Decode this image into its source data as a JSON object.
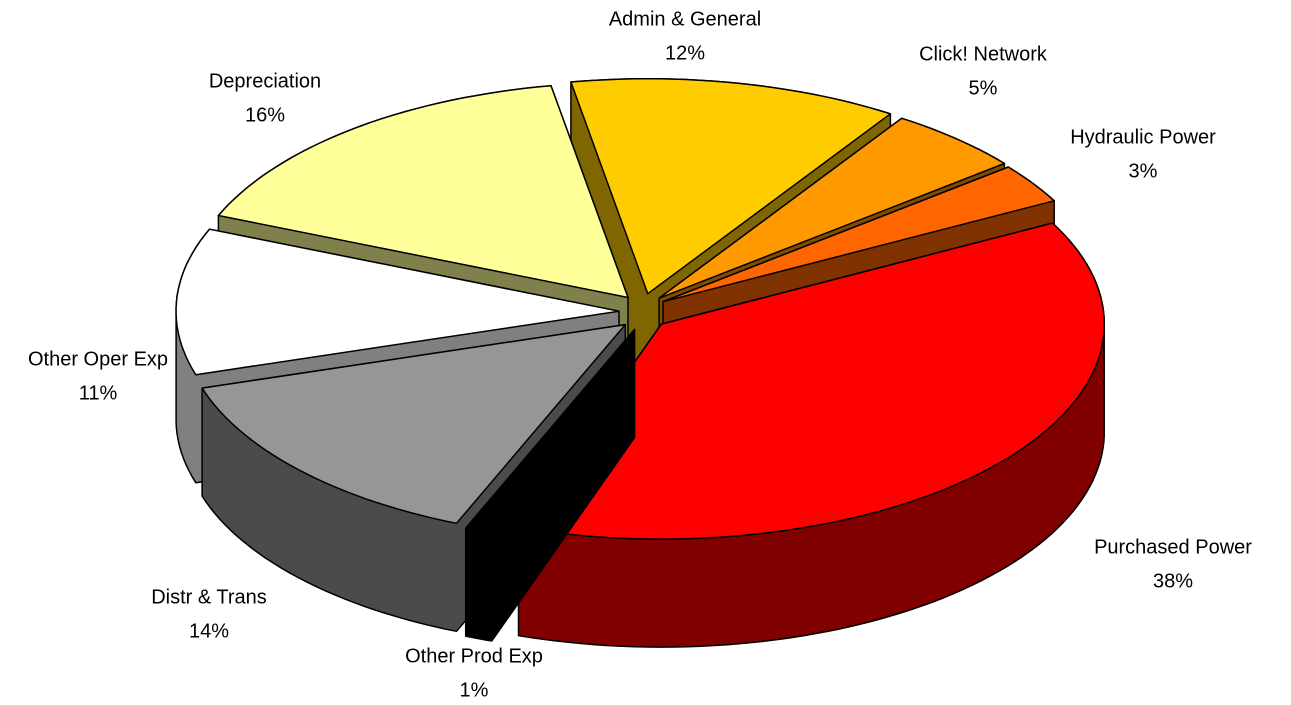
{
  "chart_data": {
    "type": "pie",
    "categories": [
      "Admin & General",
      "Click! Network",
      "Hydraulic Power",
      "Purchased Power",
      "Other Prod Exp",
      "Distr & Trans",
      "Other Oper Exp",
      "Depreciation"
    ],
    "values": [
      12,
      5,
      3,
      38,
      1,
      14,
      11,
      16
    ],
    "value_labels": [
      "12%",
      "5%",
      "3%",
      "38%",
      "1%",
      "14%",
      "11%",
      "16%"
    ],
    "colors": [
      "#ffcc00",
      "#ff9900",
      "#ff6600",
      "#ff0000",
      "#000000",
      "#969696",
      "#ffffff",
      "#ffff99"
    ],
    "side_colors": [
      "#806600",
      "#804c00",
      "#803300",
      "#800000",
      "#000000",
      "#4b4b4b",
      "#808080",
      "#80804c"
    ],
    "exploded": true,
    "three_d": true
  }
}
